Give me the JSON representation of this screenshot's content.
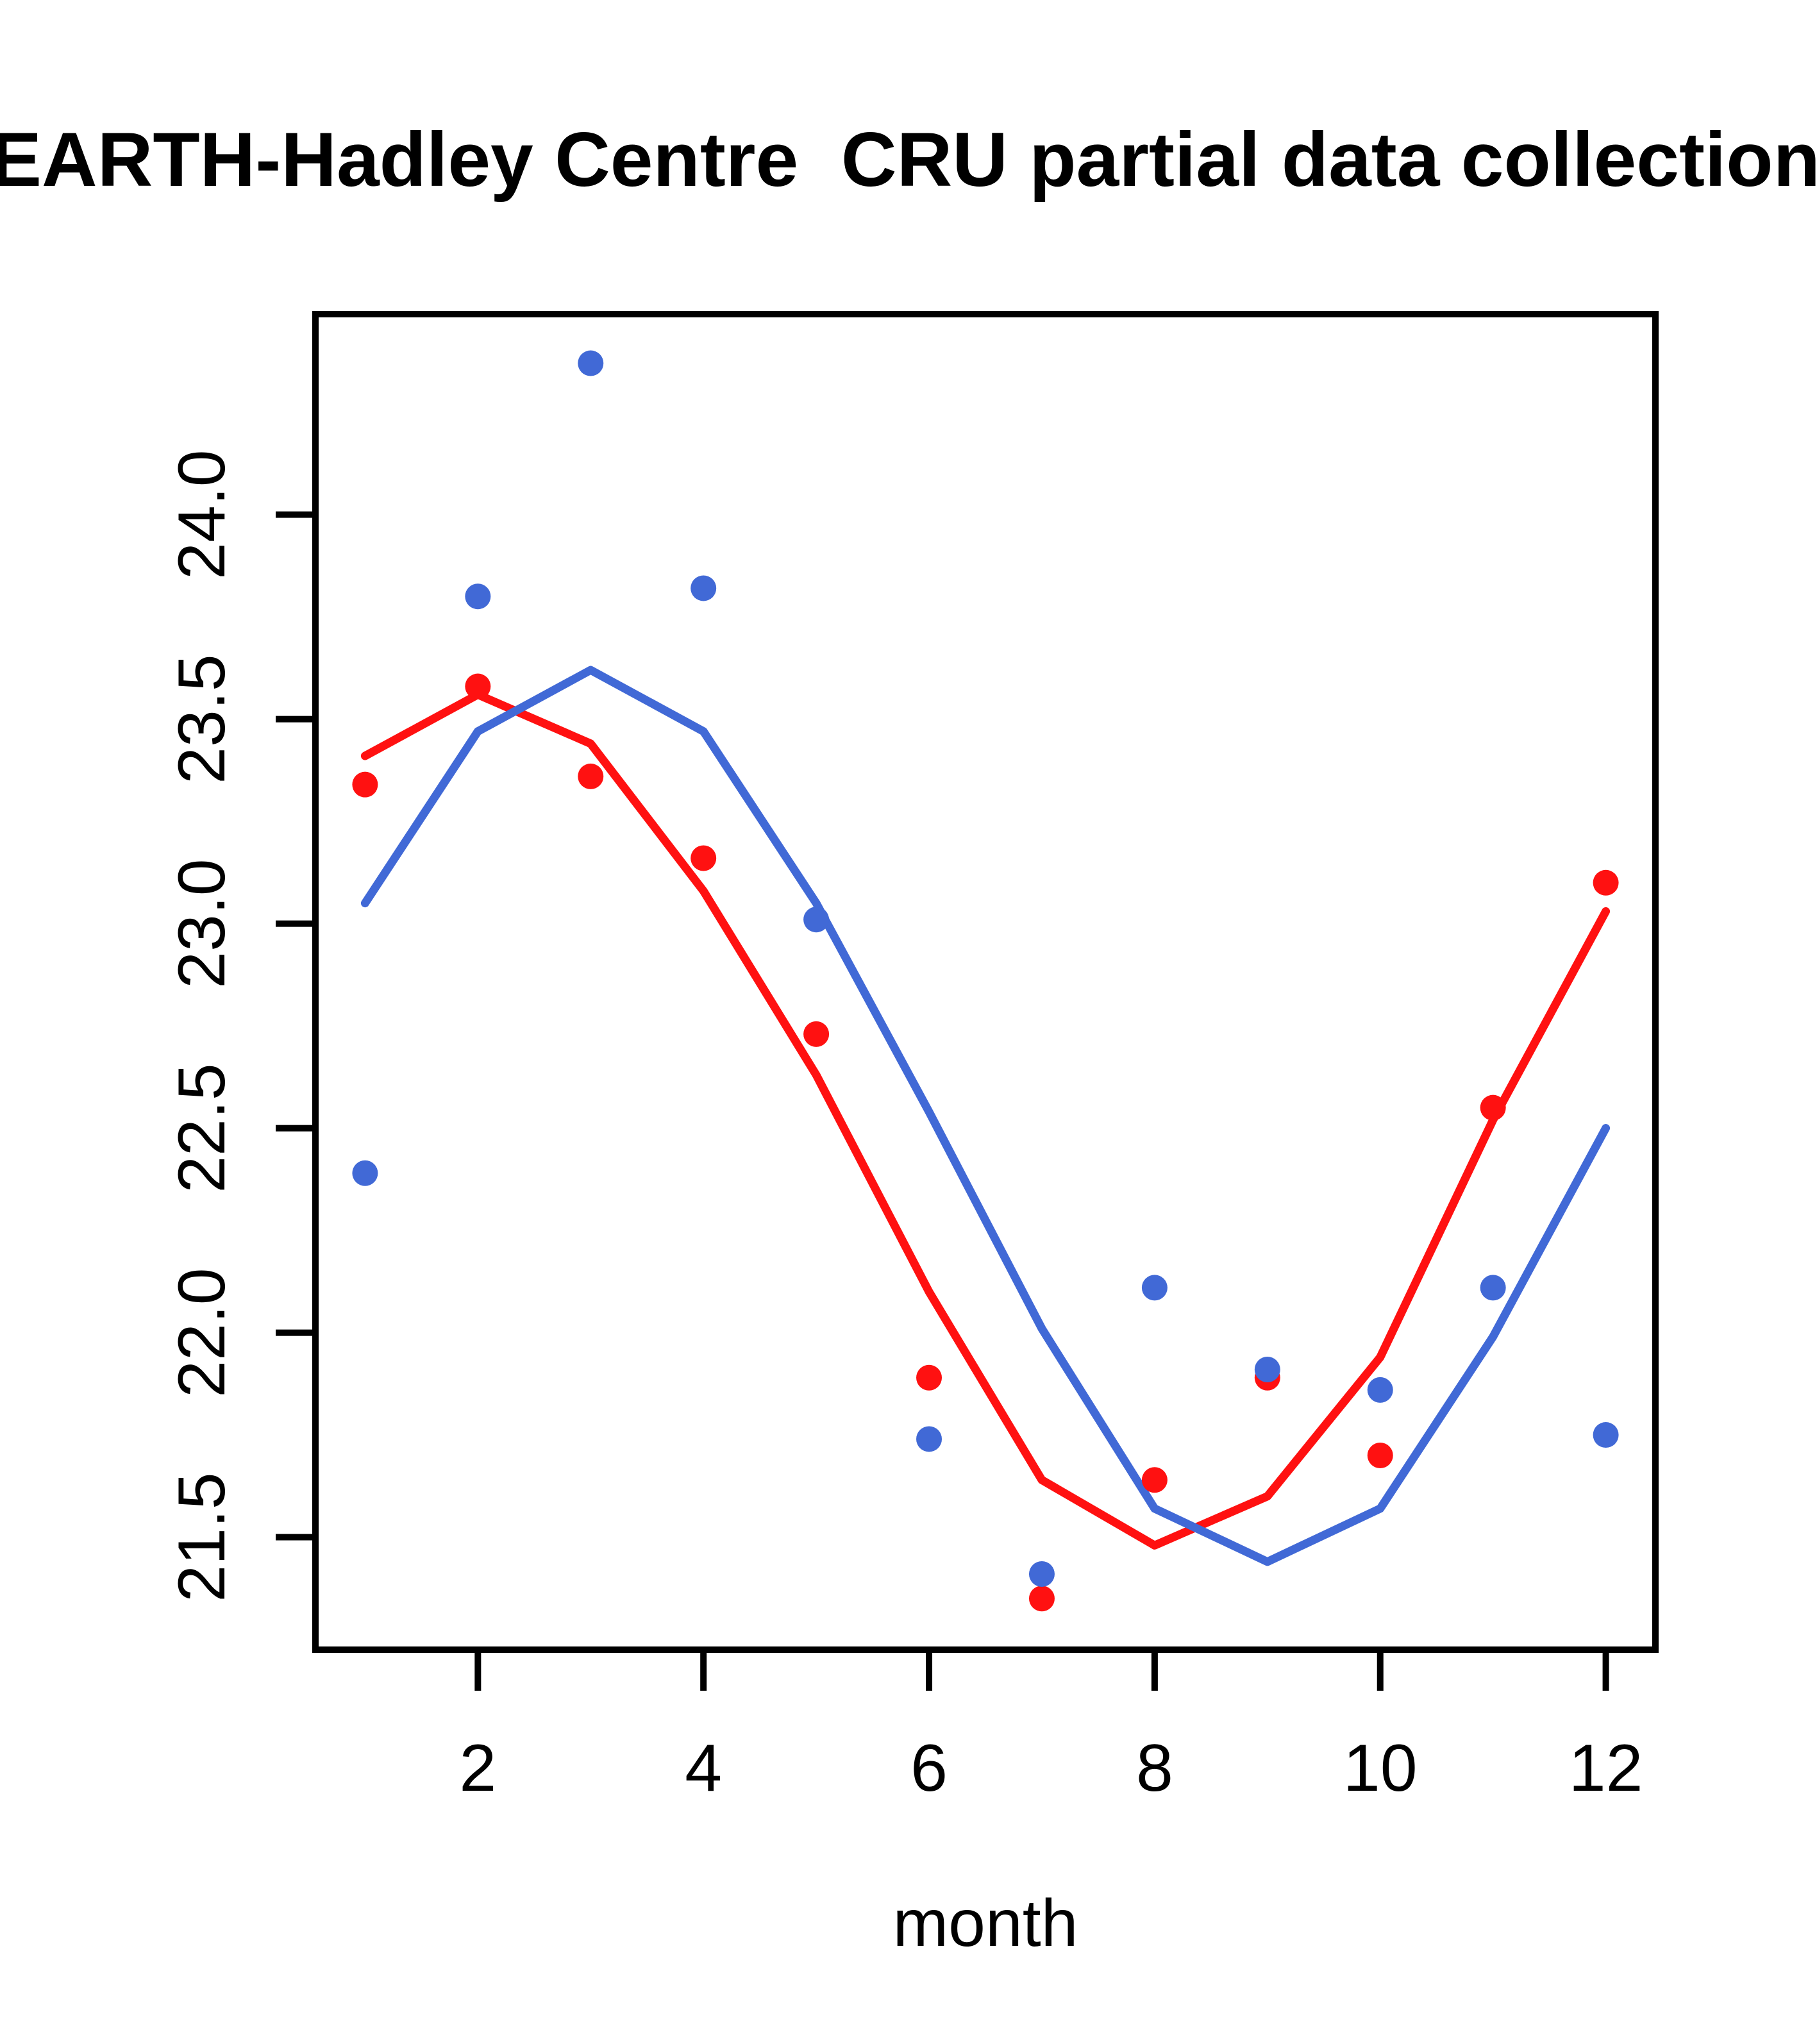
{
  "title": "EARTH-Hadley Centre  CRU partial data collection,",
  "axes": {
    "x_label": "month",
    "x_tick_labels": [
      "2",
      "4",
      "6",
      "8",
      "10",
      "12"
    ],
    "x_tick_values": [
      2,
      4,
      6,
      8,
      10,
      12
    ],
    "y_tick_labels": [
      "21.5",
      "22.0",
      "22.5",
      "23.0",
      "23.5",
      "24.0"
    ],
    "y_tick_values": [
      21.5,
      22.0,
      22.5,
      23.0,
      23.5,
      24.0
    ]
  },
  "colors": {
    "red": "#FF1111",
    "blue": "#4169D6",
    "axis": "#000000",
    "background": "#FFFFFF"
  },
  "chart_data": {
    "type": "scatter",
    "title": "EARTH-Hadley Centre  CRU partial data collection,",
    "xlabel": "month",
    "ylabel": "",
    "x": [
      1,
      2,
      3,
      4,
      5,
      6,
      7,
      8,
      9,
      10,
      11,
      12
    ],
    "xlim": [
      0.56,
      12.44
    ],
    "ylim": [
      21.225,
      24.49
    ],
    "grid": false,
    "legend": "none",
    "series": [
      {
        "name": "red-points",
        "kind": "points",
        "color": "#FF1111",
        "values": [
          23.34,
          23.58,
          23.36,
          23.16,
          22.73,
          21.89,
          21.35,
          21.64,
          21.89,
          21.7,
          22.55,
          23.1
        ]
      },
      {
        "name": "blue-points",
        "kind": "points",
        "color": "#4169D6",
        "values": [
          22.39,
          23.8,
          24.37,
          23.82,
          23.01,
          21.74,
          21.41,
          22.11,
          21.91,
          21.86,
          22.11,
          21.75
        ]
      },
      {
        "name": "red-fitted-line",
        "kind": "line",
        "color": "#FF1111",
        "values": [
          23.41,
          23.56,
          23.44,
          23.08,
          22.63,
          22.1,
          21.64,
          21.48,
          21.6,
          21.94,
          22.52,
          23.03
        ]
      },
      {
        "name": "blue-fitted-line",
        "kind": "line",
        "color": "#4169D6",
        "values": [
          23.05,
          23.47,
          23.62,
          23.47,
          23.05,
          22.54,
          22.01,
          21.57,
          21.44,
          21.57,
          21.99,
          22.5
        ]
      }
    ]
  }
}
